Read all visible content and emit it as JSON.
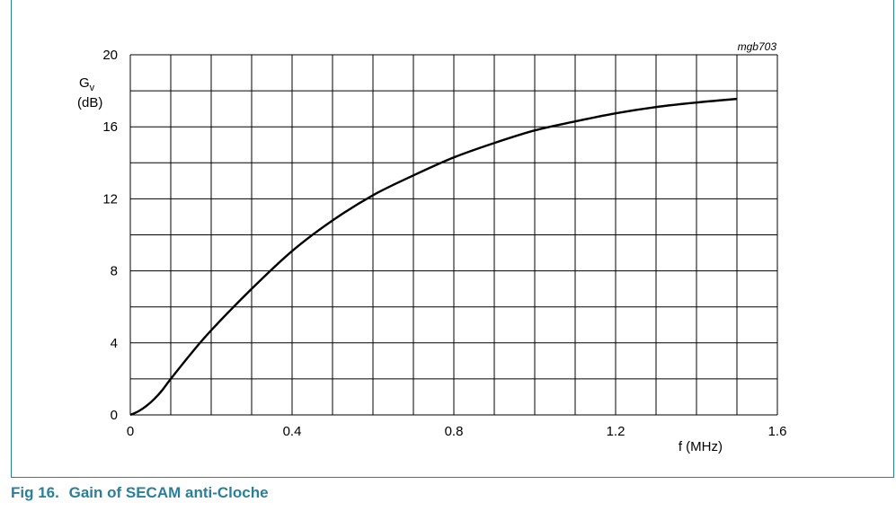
{
  "figure": {
    "number": "Fig 16.",
    "title": "Gain of SECAM anti-Cloche",
    "code": "mgb703"
  },
  "colors": {
    "accent": "#2a7f9a",
    "grid": "#000000",
    "curve": "#000000"
  },
  "chart_data": {
    "type": "line",
    "title": "Gain of SECAM anti-Cloche",
    "ylabel_symbol": "G",
    "ylabel_subscript": "v",
    "ylabel_unit": "(dB)",
    "xlabel": "f (MHz)",
    "xlim": [
      0,
      1.6
    ],
    "ylim": [
      0,
      20
    ],
    "xticks": [
      0,
      0.4,
      0.8,
      1.2,
      1.6
    ],
    "xtick_labels": [
      "0",
      "0.4",
      "0.8",
      "1.2",
      "1.6"
    ],
    "yticks": [
      0,
      4,
      8,
      12,
      16,
      20
    ],
    "ytick_labels": [
      "0",
      "4",
      "8",
      "12",
      "16",
      "20"
    ],
    "x_minor_step": 0.1,
    "y_minor_step": 2,
    "grid": true,
    "series": [
      {
        "x": [
          0,
          0.02,
          0.04,
          0.06,
          0.08,
          0.1,
          0.15,
          0.2,
          0.3,
          0.4,
          0.5,
          0.6,
          0.7,
          0.8,
          0.9,
          1.0,
          1.1,
          1.2,
          1.3,
          1.4,
          1.5
        ],
        "values": [
          0,
          0.2,
          0.5,
          0.9,
          1.4,
          2.0,
          3.4,
          4.7,
          7.0,
          9.1,
          10.8,
          12.2,
          13.3,
          14.3,
          15.1,
          15.8,
          16.3,
          16.75,
          17.1,
          17.35,
          17.55
        ]
      }
    ]
  }
}
